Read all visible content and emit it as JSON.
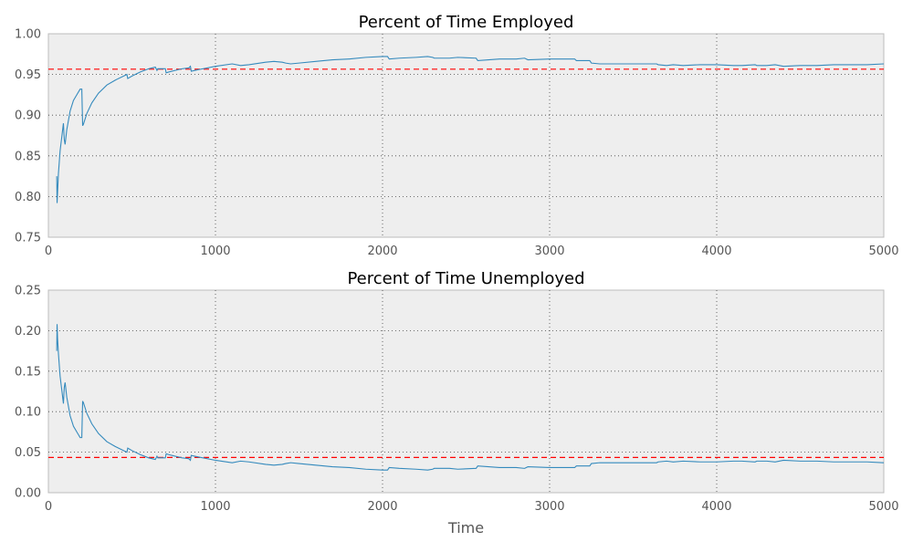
{
  "chart_data": [
    {
      "type": "line",
      "title": "Percent of Time Employed",
      "xlabel": "",
      "ylabel": "",
      "xlim": [
        0,
        5000
      ],
      "ylim": [
        0.75,
        1.0
      ],
      "x_ticks": [
        0,
        1000,
        2000,
        3000,
        4000,
        5000
      ],
      "y_ticks": [
        0.75,
        0.8,
        0.85,
        0.9,
        0.95,
        1.0
      ],
      "x_tick_labels": [
        "0",
        "1000",
        "2000",
        "3000",
        "4000",
        "5000"
      ],
      "y_tick_labels": [
        "0.75",
        "0.80",
        "0.85",
        "0.90",
        "0.95",
        "1.00"
      ],
      "grid": true,
      "series": [
        {
          "color": "#348abd",
          "x": [
            50,
            52,
            60,
            70,
            80,
            90,
            95,
            100,
            110,
            130,
            150,
            170,
            190,
            200,
            205,
            210,
            230,
            260,
            300,
            350,
            400,
            450,
            470,
            475,
            500,
            550,
            600,
            640,
            650,
            655,
            700,
            705,
            720,
            760,
            800,
            840,
            850,
            855,
            900,
            1000,
            1100,
            1150,
            1200,
            1300,
            1350,
            1400,
            1420,
            1450,
            1500,
            1600,
            1700,
            1800,
            1900,
            2000,
            2030,
            2040,
            2100,
            2200,
            2270,
            2300,
            2310,
            2400,
            2450,
            2560,
            2570,
            2700,
            2800,
            2850,
            2870,
            3000,
            3100,
            3150,
            3160,
            3240,
            3250,
            3300,
            3350,
            3400,
            3500,
            3550,
            3640,
            3650,
            3700,
            3740,
            3800,
            3900,
            4000,
            4100,
            4150,
            4230,
            4240,
            4300,
            4350,
            4400,
            4500,
            4600,
            4700,
            4800,
            4900,
            5000
          ],
          "y": [
            0.825,
            0.792,
            0.828,
            0.856,
            0.873,
            0.89,
            0.87,
            0.864,
            0.882,
            0.905,
            0.918,
            0.925,
            0.932,
            0.932,
            0.887,
            0.889,
            0.902,
            0.915,
            0.927,
            0.937,
            0.943,
            0.948,
            0.95,
            0.945,
            0.948,
            0.953,
            0.957,
            0.959,
            0.955,
            0.957,
            0.957,
            0.952,
            0.953,
            0.955,
            0.957,
            0.958,
            0.96,
            0.954,
            0.956,
            0.96,
            0.963,
            0.961,
            0.962,
            0.965,
            0.966,
            0.965,
            0.964,
            0.963,
            0.964,
            0.966,
            0.968,
            0.969,
            0.971,
            0.972,
            0.972,
            0.969,
            0.97,
            0.971,
            0.972,
            0.971,
            0.97,
            0.97,
            0.971,
            0.97,
            0.967,
            0.969,
            0.969,
            0.97,
            0.968,
            0.969,
            0.969,
            0.969,
            0.967,
            0.967,
            0.964,
            0.963,
            0.963,
            0.963,
            0.963,
            0.963,
            0.963,
            0.962,
            0.961,
            0.962,
            0.961,
            0.962,
            0.962,
            0.961,
            0.961,
            0.962,
            0.961,
            0.961,
            0.962,
            0.96,
            0.961,
            0.961,
            0.962,
            0.962,
            0.962,
            0.963
          ]
        }
      ],
      "reference_line": {
        "y": 0.9565,
        "color": "#ff0000",
        "style": "dashed"
      }
    },
    {
      "type": "line",
      "title": "Percent of Time Unemployed",
      "xlabel": "Time",
      "ylabel": "",
      "xlim": [
        0,
        5000
      ],
      "ylim": [
        0.0,
        0.25
      ],
      "x_ticks": [
        0,
        1000,
        2000,
        3000,
        4000,
        5000
      ],
      "y_ticks": [
        0.0,
        0.05,
        0.1,
        0.15,
        0.2,
        0.25
      ],
      "x_tick_labels": [
        "0",
        "1000",
        "2000",
        "3000",
        "4000",
        "5000"
      ],
      "y_tick_labels": [
        "0.00",
        "0.05",
        "0.10",
        "0.15",
        "0.20",
        "0.25"
      ],
      "grid": true,
      "series": [
        {
          "color": "#348abd",
          "x": [
            50,
            52,
            55,
            60,
            70,
            80,
            90,
            95,
            100,
            110,
            130,
            150,
            170,
            190,
            200,
            205,
            210,
            230,
            260,
            300,
            350,
            400,
            450,
            470,
            475,
            500,
            550,
            600,
            640,
            650,
            655,
            700,
            705,
            720,
            760,
            800,
            840,
            850,
            855,
            900,
            1000,
            1100,
            1150,
            1200,
            1300,
            1350,
            1400,
            1420,
            1450,
            1500,
            1600,
            1700,
            1800,
            1900,
            2000,
            2030,
            2040,
            2100,
            2200,
            2270,
            2300,
            2310,
            2400,
            2450,
            2560,
            2570,
            2700,
            2800,
            2850,
            2870,
            3000,
            3100,
            3150,
            3160,
            3240,
            3250,
            3300,
            3350,
            3400,
            3500,
            3550,
            3640,
            3650,
            3700,
            3740,
            3800,
            3900,
            4000,
            4100,
            4150,
            4230,
            4240,
            4300,
            4350,
            4400,
            4500,
            4600,
            4700,
            4800,
            4900,
            5000
          ],
          "y": [
            0.175,
            0.208,
            0.19,
            0.172,
            0.144,
            0.127,
            0.11,
            0.13,
            0.136,
            0.118,
            0.095,
            0.082,
            0.075,
            0.068,
            0.068,
            0.113,
            0.111,
            0.098,
            0.085,
            0.073,
            0.063,
            0.057,
            0.052,
            0.05,
            0.055,
            0.052,
            0.047,
            0.043,
            0.041,
            0.045,
            0.043,
            0.043,
            0.048,
            0.047,
            0.045,
            0.043,
            0.042,
            0.04,
            0.046,
            0.044,
            0.04,
            0.037,
            0.039,
            0.038,
            0.035,
            0.034,
            0.035,
            0.036,
            0.037,
            0.036,
            0.034,
            0.032,
            0.031,
            0.029,
            0.028,
            0.028,
            0.031,
            0.03,
            0.029,
            0.028,
            0.029,
            0.03,
            0.03,
            0.029,
            0.03,
            0.033,
            0.031,
            0.031,
            0.03,
            0.032,
            0.031,
            0.031,
            0.031,
            0.033,
            0.033,
            0.036,
            0.037,
            0.037,
            0.037,
            0.037,
            0.037,
            0.037,
            0.038,
            0.039,
            0.038,
            0.039,
            0.038,
            0.038,
            0.039,
            0.039,
            0.038,
            0.039,
            0.039,
            0.038,
            0.04,
            0.039,
            0.039,
            0.038,
            0.038,
            0.038,
            0.037
          ]
        }
      ],
      "reference_line": {
        "y": 0.0435,
        "color": "#ff0000",
        "style": "dashed"
      }
    }
  ]
}
